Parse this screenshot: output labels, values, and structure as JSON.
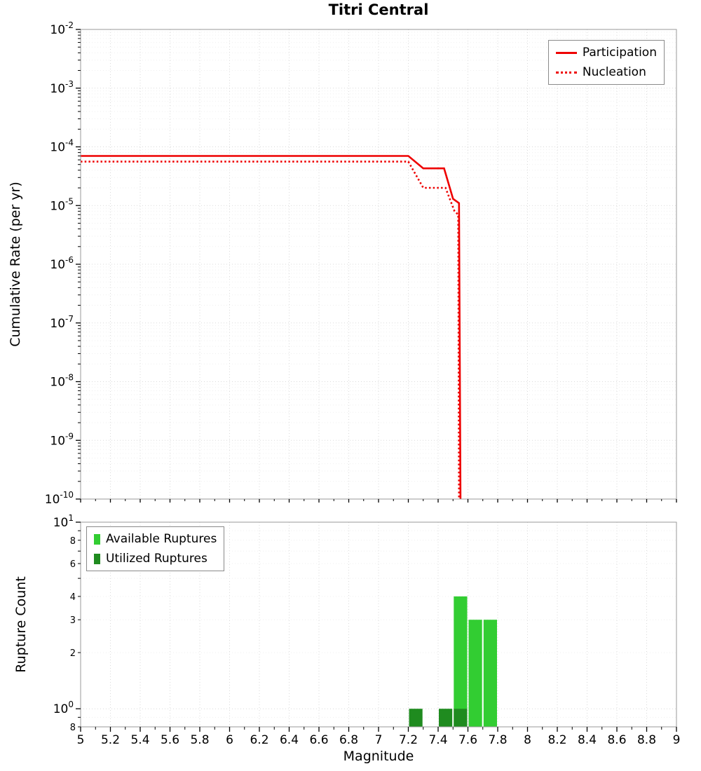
{
  "title": "Titri Central",
  "colors": {
    "line_red": "#ee0000",
    "available_green": "#32cd32",
    "utilized_green": "#1f8b1f",
    "grid_major": "#d9d9d9",
    "grid_minor": "#efefef",
    "spine": "#9a9a9a",
    "tick": "#000000"
  },
  "chart_data": [
    {
      "type": "line",
      "title": "Titri Central",
      "ylabel": "Cumulative Rate (per yr)",
      "xlabel": "Magnitude",
      "xlim": [
        5,
        9
      ],
      "ylim": [
        1e-10,
        0.01
      ],
      "yscale": "log",
      "grid": true,
      "legend_position": "upper right",
      "legend": [
        {
          "label": "Participation",
          "style": "solid",
          "color": "#ee0000"
        },
        {
          "label": "Nucleation",
          "style": "dotted",
          "color": "#ee0000"
        }
      ],
      "y_tick_exponents": [
        "-2",
        "-3",
        "-4",
        "-5",
        "-6",
        "-7",
        "-8",
        "-9",
        "-10"
      ],
      "series": [
        {
          "name": "Participation",
          "style": "solid",
          "color": "#ee0000",
          "points": [
            [
              5,
              7e-05
            ],
            [
              7.2,
              7e-05
            ],
            [
              7.3,
              4.3e-05
            ],
            [
              7.44,
              4.3e-05
            ],
            [
              7.5,
              1.3e-05
            ],
            [
              7.54,
              1.1e-05
            ],
            [
              7.55,
              1e-10
            ]
          ]
        },
        {
          "name": "Nucleation",
          "style": "dotted",
          "color": "#ee0000",
          "points": [
            [
              5,
              5.6e-05
            ],
            [
              7.2,
              5.6e-05
            ],
            [
              7.3,
              2e-05
            ],
            [
              7.45,
              2e-05
            ],
            [
              7.51,
              8e-06
            ],
            [
              7.535,
              7e-06
            ],
            [
              7.54,
              1e-10
            ]
          ]
        }
      ]
    },
    {
      "type": "bar",
      "ylabel": "Rupture Count",
      "xlabel": "Magnitude",
      "xlim": [
        5,
        9
      ],
      "ylim": [
        0.8,
        10
      ],
      "yscale": "log",
      "bin_width": 0.1,
      "legend_position": "upper left",
      "legend": [
        {
          "label": "Available Ruptures",
          "color": "#32cd32"
        },
        {
          "label": "Utilized Ruptures",
          "color": "#1f8b1f"
        }
      ],
      "x_tick_labels": [
        "5",
        "5.2",
        "5.4",
        "5.6",
        "5.8",
        "6",
        "6.2",
        "6.4",
        "6.6",
        "6.8",
        "7",
        "7.2",
        "7.4",
        "7.6",
        "7.8",
        "8",
        "8.2",
        "8.4",
        "8.6",
        "8.8",
        "9"
      ],
      "y_ticks": [
        {
          "value": 10,
          "base": "10",
          "exp": "1",
          "major": true
        },
        {
          "value": 8,
          "label": "8"
        },
        {
          "value": 6,
          "label": "6"
        },
        {
          "value": 4,
          "label": "4"
        },
        {
          "value": 3,
          "label": "3"
        },
        {
          "value": 2,
          "label": "2"
        },
        {
          "value": 1,
          "base": "10",
          "exp": "0",
          "major": true
        },
        {
          "value": 0.8,
          "label": "8"
        }
      ],
      "series": [
        {
          "name": "Available Ruptures",
          "color": "#32cd32",
          "bars": [
            {
              "x": 7.5,
              "count": 4
            },
            {
              "x": 7.6,
              "count": 3
            },
            {
              "x": 7.7,
              "count": 3
            }
          ]
        },
        {
          "name": "Utilized Ruptures",
          "color": "#1f8b1f",
          "bars": [
            {
              "x": 7.2,
              "count": 1
            },
            {
              "x": 7.4,
              "count": 1
            },
            {
              "x": 7.5,
              "count": 1
            }
          ]
        }
      ]
    }
  ]
}
